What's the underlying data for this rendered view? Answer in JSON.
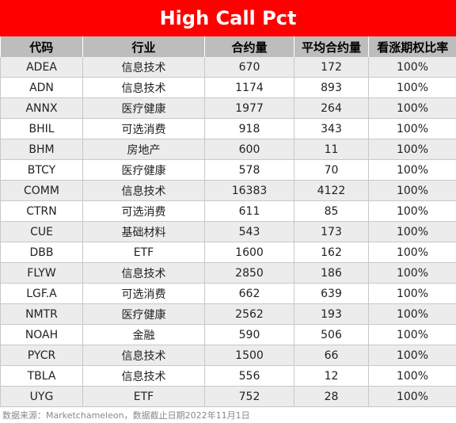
{
  "title": "High Call Pct",
  "headers": [
    "代码",
    "行业",
    "合约量",
    "平均合约量",
    "看涨期权比率"
  ],
  "rows": [
    [
      "ADEA",
      "信息技术",
      "670",
      "172",
      "100%"
    ],
    [
      "ADN",
      "信息技术",
      "1174",
      "893",
      "100%"
    ],
    [
      "ANNX",
      "医疗健康",
      "1977",
      "264",
      "100%"
    ],
    [
      "BHIL",
      "可选消费",
      "918",
      "343",
      "100%"
    ],
    [
      "BHM",
      "房地产",
      "600",
      "11",
      "100%"
    ],
    [
      "BTCY",
      "医疗健康",
      "578",
      "70",
      "100%"
    ],
    [
      "COMM",
      "信息技术",
      "16383",
      "4122",
      "100%"
    ],
    [
      "CTRN",
      "可选消费",
      "611",
      "85",
      "100%"
    ],
    [
      "CUE",
      "基础材料",
      "543",
      "173",
      "100%"
    ],
    [
      "DBB",
      "ETF",
      "1600",
      "162",
      "100%"
    ],
    [
      "FLYW",
      "信息技术",
      "2850",
      "186",
      "100%"
    ],
    [
      "LGF.A",
      "可选消费",
      "662",
      "639",
      "100%"
    ],
    [
      "NMTR",
      "医疗健康",
      "2562",
      "193",
      "100%"
    ],
    [
      "NOAH",
      "金融",
      "590",
      "506",
      "100%"
    ],
    [
      "PYCR",
      "信息技术",
      "1500",
      "66",
      "100%"
    ],
    [
      "TBLA",
      "信息技术",
      "556",
      "12",
      "100%"
    ],
    [
      "UYG",
      "ETF",
      "752",
      "28",
      "100%"
    ]
  ],
  "footer": "数据来源：Marketchameleon，数据截止日期2022年11月1日",
  "colors": {
    "title_bg": "#ff0000",
    "header_bg": "#bdbdbd",
    "row_alt": "#ececec"
  }
}
